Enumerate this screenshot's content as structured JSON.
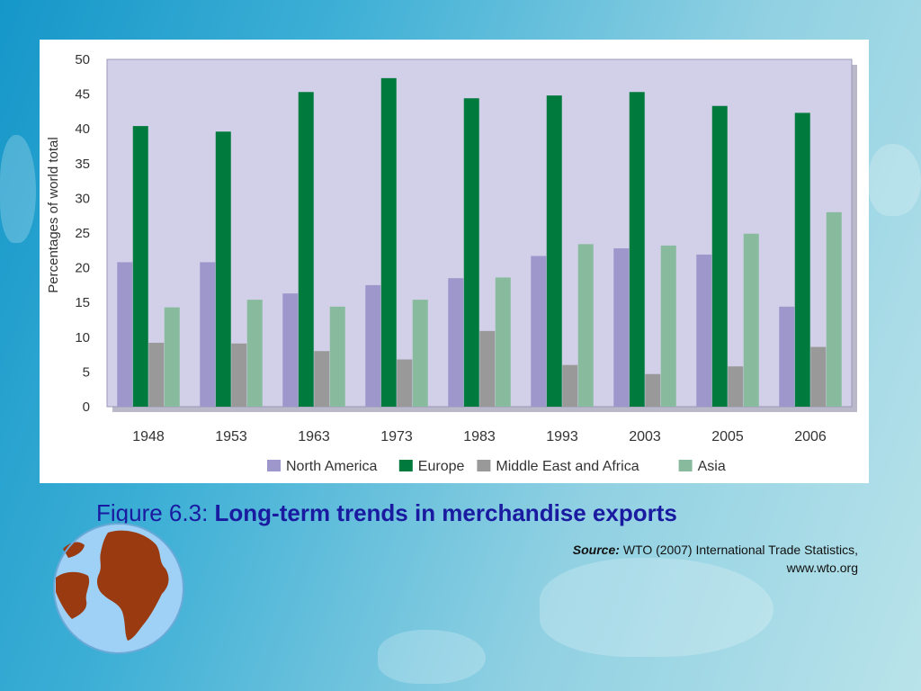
{
  "figure": {
    "prefix": "Figure 6.3:",
    "title": "Long-term trends in merchandise exports",
    "source_label": "Source:",
    "source_text": "WTO (2007) International Trade Statistics,",
    "source_url": "www.wto.org"
  },
  "colors": {
    "north_america": "#9d97cc",
    "europe": "#007a3d",
    "middle_east_africa": "#999999",
    "asia": "#88bb9d",
    "plot_bg": "#d2d0e8"
  },
  "chart_data": {
    "type": "bar",
    "ylabel": "Percentages of world total",
    "xlabel": "",
    "ylim": [
      0,
      50
    ],
    "yticks": [
      0,
      5,
      10,
      15,
      20,
      25,
      30,
      35,
      40,
      45,
      50
    ],
    "categories": [
      "1948",
      "1953",
      "1963",
      "1973",
      "1983",
      "1993",
      "2003",
      "2005",
      "2006"
    ],
    "legend_position": "bottom",
    "grid": false,
    "series": [
      {
        "name": "North America",
        "values": [
          20.8,
          20.8,
          16.3,
          17.5,
          18.5,
          21.7,
          22.8,
          21.9,
          14.4
        ]
      },
      {
        "name": "Europe",
        "values": [
          40.4,
          39.6,
          45.3,
          47.3,
          44.4,
          44.8,
          45.3,
          43.3,
          42.3
        ]
      },
      {
        "name": "Middle East and Africa",
        "values": [
          9.2,
          9.1,
          8.0,
          6.8,
          10.9,
          6.0,
          4.7,
          5.8,
          8.6
        ]
      },
      {
        "name": "Asia",
        "values": [
          14.3,
          15.4,
          14.4,
          15.4,
          18.6,
          23.4,
          23.2,
          24.9,
          28.0
        ]
      }
    ]
  }
}
